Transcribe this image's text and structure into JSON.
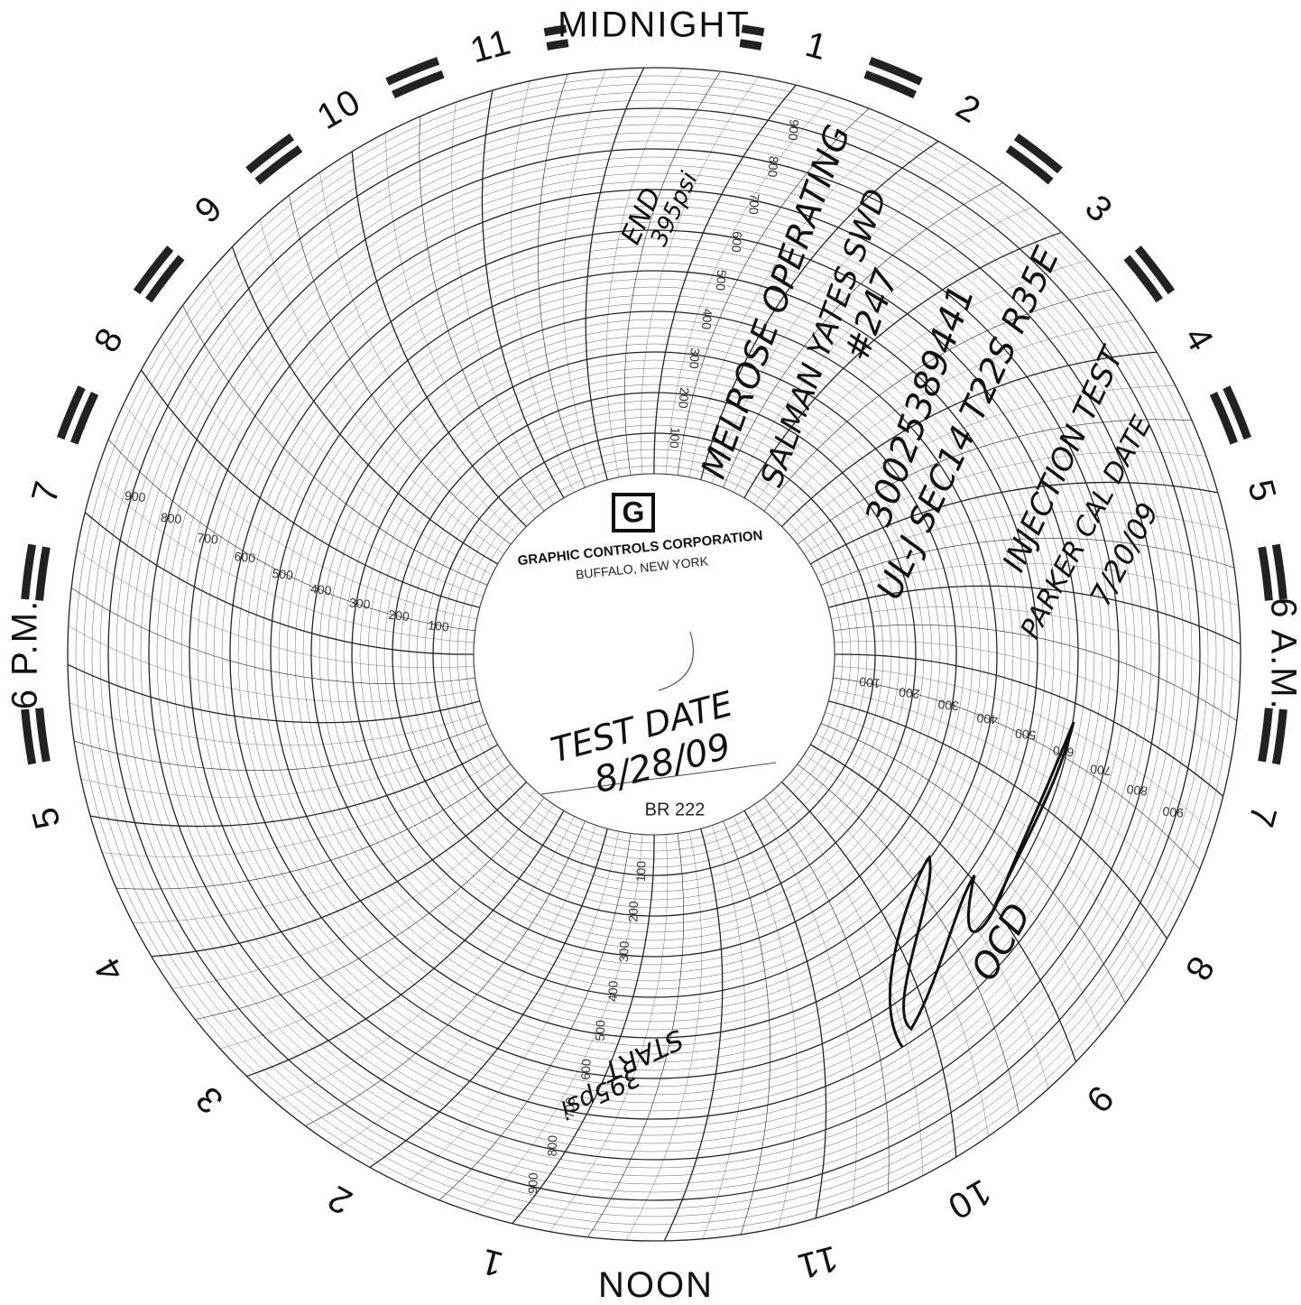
{
  "hour_labels": [
    "MIDNIGHT",
    "1",
    "2",
    "3",
    "4",
    "5",
    "6 A.M.",
    "7",
    "8",
    "9",
    "10",
    "11",
    "NOON",
    "1",
    "2",
    "3",
    "4",
    "5",
    "6 P.M.",
    "7",
    "8",
    "9",
    "10",
    "11"
  ],
  "scale_labels": [
    "100",
    "200",
    "300",
    "400",
    "500",
    "600",
    "700",
    "800",
    "900"
  ],
  "logo": {
    "mark": "G",
    "company": "GRAPHIC CONTROLS CORPORATION",
    "city": "BUFFALO, NEW YORK"
  },
  "handwriting": {
    "end": "END",
    "end_pressure": "395psi",
    "operator": "MELROSE OPERATING",
    "well": "SALMAN YATES SWD",
    "well_number": "#247",
    "api": "30025389441",
    "location": "UL-J SEC14 T22S R35E",
    "test_type": "INJECTION TEST",
    "cal_label": "PARKER CAL DATE",
    "cal_date": "7/20/09",
    "test_label": "TEST DATE",
    "test_date": "8/28/09",
    "start": "START",
    "start_pressure": "395psi",
    "agency": "OCD"
  },
  "stamp": "BR 222"
}
